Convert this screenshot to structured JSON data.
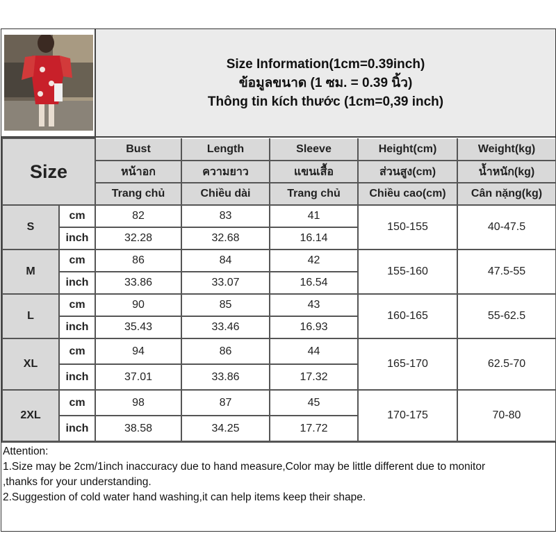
{
  "title": {
    "en": "Size Information(1cm=0.39inch)",
    "th": "ข้อมูลขนาด (1 ซม. = 0.39 นิ้ว)",
    "vi": "Thông tin kích thước (1cm=0,39 inch)"
  },
  "size_label": "Size",
  "columns": [
    {
      "en": "Bust",
      "th": "หน้าอก",
      "vi": "Trang chủ"
    },
    {
      "en": "Length",
      "th": "ความยาว",
      "vi": "Chiều dài"
    },
    {
      "en": "Sleeve",
      "th": "แขนเสื้อ",
      "vi": "Trang chủ"
    },
    {
      "en": "Height(cm)",
      "th": "ส่วนสูง(cm)",
      "vi": "Chiều cao(cm)"
    },
    {
      "en": "Weight(kg)",
      "th": "น้ำหนัก(kg)",
      "vi": "Cân nặng(kg)"
    }
  ],
  "units": {
    "cm": "cm",
    "inch": "inch"
  },
  "rows": [
    {
      "size": "S",
      "cm": [
        "82",
        "83",
        "41"
      ],
      "inch": [
        "32.28",
        "32.68",
        "16.14"
      ],
      "height": "150-155",
      "weight": "40-47.5"
    },
    {
      "size": "M",
      "cm": [
        "86",
        "84",
        "42"
      ],
      "inch": [
        "33.86",
        "33.07",
        "16.54"
      ],
      "height": "155-160",
      "weight": "47.5-55"
    },
    {
      "size": "L",
      "cm": [
        "90",
        "85",
        "43"
      ],
      "inch": [
        "35.43",
        "33.46",
        "16.93"
      ],
      "height": "160-165",
      "weight": "55-62.5"
    },
    {
      "size": "XL",
      "cm": [
        "94",
        "86",
        "44"
      ],
      "inch": [
        "37.01",
        "33.86",
        "17.32"
      ],
      "height": "165-170",
      "weight": "62.5-70"
    },
    {
      "size": "2XL",
      "cm": [
        "98",
        "87",
        "45"
      ],
      "inch": [
        "38.58",
        "34.25",
        "17.72"
      ],
      "height": "170-175",
      "weight": "70-80"
    }
  ],
  "attention": [
    "Attention:",
    "1.Size may be 2cm/1inch inaccuracy due to hand measure,Color may be little different due to monitor",
    ",thanks for your understanding.",
    "2.Suggestion of cold water hand washing,it can help items keep their shape."
  ]
}
